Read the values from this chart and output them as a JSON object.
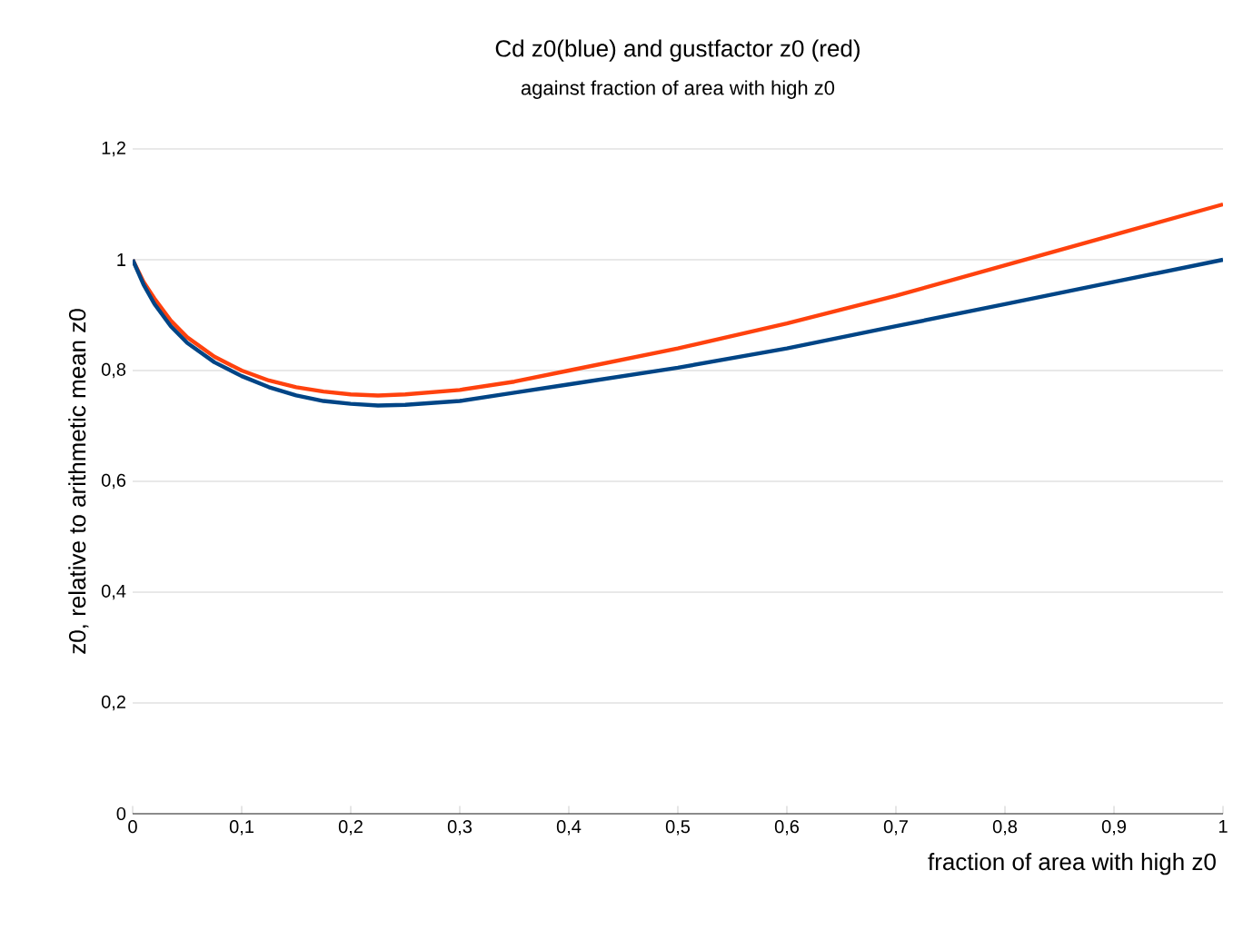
{
  "chart_data": {
    "type": "line",
    "title": "Cd z0(blue) and gustfactor z0 (red)",
    "subtitle": "against fraction of area with high z0",
    "xlabel": "fraction of area with high z0",
    "ylabel": "z0, relative to arithmetic mean z0",
    "series": [
      {
        "color": "#ff420e",
        "x": [
          0,
          0.01,
          0.02,
          0.035,
          0.05,
          0.075,
          0.1,
          0.125,
          0.15,
          0.175,
          0.2,
          0.225,
          0.25,
          0.3,
          0.35,
          0.4,
          0.5,
          0.6,
          0.7,
          0.8,
          0.9,
          1.0
        ],
        "values": [
          1.0,
          0.96,
          0.93,
          0.89,
          0.86,
          0.825,
          0.8,
          0.782,
          0.77,
          0.762,
          0.757,
          0.755,
          0.757,
          0.765,
          0.78,
          0.8,
          0.84,
          0.885,
          0.935,
          0.99,
          1.045,
          1.1
        ]
      },
      {
        "color": "#004586",
        "x": [
          0,
          0.01,
          0.02,
          0.035,
          0.05,
          0.075,
          0.1,
          0.125,
          0.15,
          0.175,
          0.2,
          0.225,
          0.25,
          0.3,
          0.35,
          0.4,
          0.5,
          0.6,
          0.7,
          0.8,
          0.9,
          1.0
        ],
        "values": [
          1.0,
          0.955,
          0.92,
          0.88,
          0.85,
          0.815,
          0.79,
          0.77,
          0.755,
          0.745,
          0.74,
          0.737,
          0.738,
          0.745,
          0.76,
          0.775,
          0.805,
          0.84,
          0.88,
          0.92,
          0.96,
          1.0
        ]
      }
    ],
    "xlim": [
      0,
      1
    ],
    "ylim": [
      0,
      1.2
    ],
    "xticks": [
      0,
      {
        "value": 0.1,
        "label": "0,1"
      },
      {
        "value": 0.2,
        "label": "0,2"
      },
      {
        "value": 0.3,
        "label": "0,3"
      },
      {
        "value": 0.4,
        "label": "0,4"
      },
      {
        "value": 0.5,
        "label": "0,5"
      },
      {
        "value": 0.6,
        "label": "0,6"
      },
      {
        "value": 0.7,
        "label": "0,7"
      },
      {
        "value": 0.8,
        "label": "0,8"
      },
      {
        "value": 0.9,
        "label": "0,9"
      },
      1
    ],
    "yticks": [
      0,
      {
        "value": 0.2,
        "label": "0,2"
      },
      {
        "value": 0.4,
        "label": "0,4"
      },
      {
        "value": 0.6,
        "label": "0,6"
      },
      {
        "value": 0.8,
        "label": "0,8"
      },
      1,
      {
        "value": 1.2,
        "label": "1,2"
      }
    ],
    "grid": "y",
    "marker": "none",
    "line_style": "solid"
  }
}
